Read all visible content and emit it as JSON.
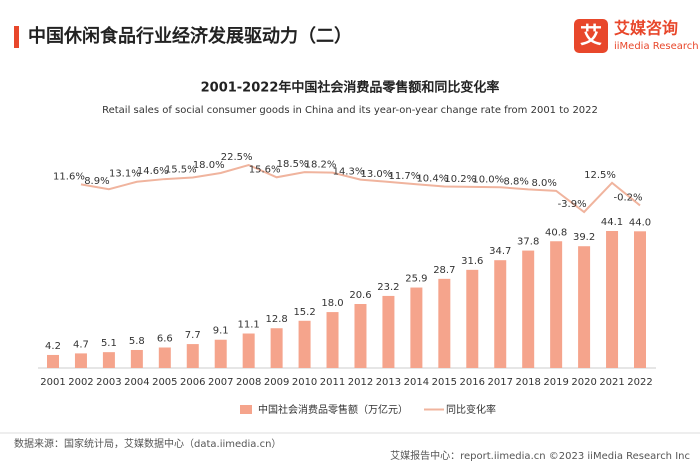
{
  "header": {
    "title": "中国休闲食品行业经济发展驱动力（二）",
    "logo_mark": "艾",
    "logo_name": "艾媒咨询",
    "logo_sub": "iiMedia Research"
  },
  "chart_data": {
    "type": "combo",
    "title": "2001-2022年中国社会消费品零售额和同比变化率",
    "subtitle": "Retail sales of social consumer goods in China and its year-on-year change rate from 2001 to 2022",
    "categories": [
      "2001",
      "2002",
      "2003",
      "2004",
      "2005",
      "2006",
      "2007",
      "2008",
      "2009",
      "2010",
      "2011",
      "2012",
      "2013",
      "2014",
      "2015",
      "2016",
      "2017",
      "2018",
      "2019",
      "2020",
      "2021",
      "2022"
    ],
    "series": [
      {
        "name": "中国社会消费品零售额（万亿元）",
        "type": "bar",
        "color": "#f5a48c",
        "values": [
          4.2,
          4.7,
          5.1,
          5.8,
          6.6,
          7.7,
          9.1,
          11.1,
          12.8,
          15.2,
          18.0,
          20.6,
          23.2,
          25.9,
          28.7,
          31.6,
          34.7,
          37.8,
          40.8,
          39.2,
          44.1,
          44.0
        ],
        "value_labels": [
          "4.2",
          "4.7",
          "5.1",
          "5.8",
          "6.6",
          "7.7",
          "9.1",
          "11.1",
          "12.8",
          "15.2",
          "18.0",
          "20.6",
          "23.2",
          "25.9",
          "28.7",
          "31.6",
          "34.7",
          "37.8",
          "40.8",
          "39.2",
          "44.1",
          "44.0"
        ]
      },
      {
        "name": "同比变化率",
        "type": "line",
        "color": "#f0b49e",
        "values": [
          null,
          11.6,
          8.9,
          13.1,
          14.6,
          15.5,
          18.0,
          22.5,
          15.6,
          18.5,
          18.2,
          14.3,
          13.0,
          11.7,
          10.4,
          10.2,
          10.0,
          8.8,
          8.0,
          -3.9,
          12.5,
          -0.2
        ],
        "value_labels": [
          null,
          "11.6%",
          "8.9%",
          "13.1%",
          "14.6%",
          "15.5%",
          "18.0%",
          "22.5%",
          "15.6%",
          "18.5%",
          "18.2%",
          "14.3%",
          "13.0%",
          "11.7%",
          "10.4%",
          "10.2%",
          "10.0%",
          "8.8%",
          "8.0%",
          "-3.9%",
          "12.5%",
          "-0.2%"
        ]
      }
    ]
  },
  "footer": {
    "source": "数据来源：国家统计局，艾媒数据中心（data.iimedia.cn）",
    "right": "艾媒报告中心：report.iimedia.cn  ©2023  iiMedia Research Inc"
  }
}
